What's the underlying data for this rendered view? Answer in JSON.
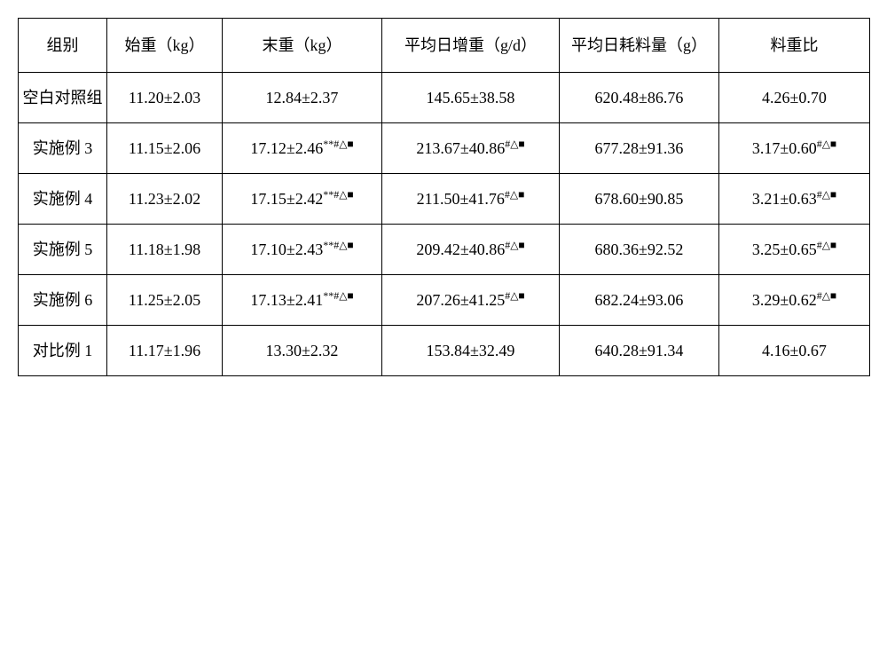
{
  "table": {
    "columns": [
      "组别",
      "始重（kg）",
      "末重（kg）",
      "平均日增重（g/d）",
      "平均日耗料量（g）",
      "料重比"
    ],
    "rows": [
      {
        "group": "空白对照组",
        "startWeight": {
          "val": "11.20±2.03",
          "sup": ""
        },
        "endWeight": {
          "val": "12.84±2.37",
          "sup": ""
        },
        "adg": {
          "val": "145.65±38.58",
          "sup": ""
        },
        "adfi": {
          "val": "620.48±86.76",
          "sup": ""
        },
        "fcr": {
          "val": "4.26±0.70",
          "sup": ""
        }
      },
      {
        "group": "实施例 3",
        "startWeight": {
          "val": "11.15±2.06",
          "sup": ""
        },
        "endWeight": {
          "val": "17.12±2.46",
          "sup": "**#△■"
        },
        "adg": {
          "val": "213.67±40.86",
          "sup": "#△■"
        },
        "adfi": {
          "val": "677.28±91.36",
          "sup": ""
        },
        "fcr": {
          "val": "3.17±0.60",
          "sup": "#△■"
        }
      },
      {
        "group": "实施例 4",
        "startWeight": {
          "val": "11.23±2.02",
          "sup": ""
        },
        "endWeight": {
          "val": "17.15±2.42",
          "sup": "**#△■"
        },
        "adg": {
          "val": "211.50±41.76",
          "sup": "#△■"
        },
        "adfi": {
          "val": "678.60±90.85",
          "sup": ""
        },
        "fcr": {
          "val": "3.21±0.63",
          "sup": "#△■"
        }
      },
      {
        "group": "实施例 5",
        "startWeight": {
          "val": "11.18±1.98",
          "sup": ""
        },
        "endWeight": {
          "val": "17.10±2.43",
          "sup": "**#△■"
        },
        "adg": {
          "val": "209.42±40.86",
          "sup": "#△■"
        },
        "adfi": {
          "val": "680.36±92.52",
          "sup": ""
        },
        "fcr": {
          "val": "3.25±0.65",
          "sup": "#△■"
        }
      },
      {
        "group": "实施例 6",
        "startWeight": {
          "val": "11.25±2.05",
          "sup": ""
        },
        "endWeight": {
          "val": "17.13±2.41",
          "sup": "**#△■"
        },
        "adg": {
          "val": "207.26±41.25",
          "sup": "#△■"
        },
        "adfi": {
          "val": "682.24±93.06",
          "sup": ""
        },
        "fcr": {
          "val": "3.29±0.62",
          "sup": "#△■"
        }
      },
      {
        "group": "对比例 1",
        "startWeight": {
          "val": "11.17±1.96",
          "sup": ""
        },
        "endWeight": {
          "val": "13.30±2.32",
          "sup": ""
        },
        "adg": {
          "val": "153.84±32.49",
          "sup": ""
        },
        "adfi": {
          "val": "640.28±91.34",
          "sup": ""
        },
        "fcr": {
          "val": "4.16±0.67",
          "sup": ""
        }
      }
    ]
  }
}
